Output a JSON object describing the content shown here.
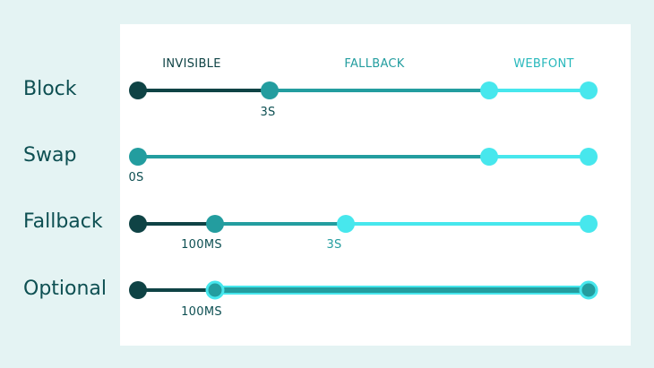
{
  "colors": {
    "invisible": "#0f4345",
    "fallback": "#239d9f",
    "webfont": "#47e7ed",
    "background": "#e4f3f3",
    "panel": "#ffffff",
    "label": "#0d4f52"
  },
  "headers": {
    "invisible": "INVISIBLE",
    "fallback": "FALLBACK",
    "webfont": "WEBFONT"
  },
  "rows": {
    "block": {
      "label": "Block",
      "tick": "3S"
    },
    "swap": {
      "label": "Swap",
      "tick": "0S"
    },
    "fallback": {
      "label": "Fallback",
      "tick1": "100MS",
      "tick2": "3S"
    },
    "optional": {
      "label": "Optional",
      "tick": "100MS"
    }
  }
}
